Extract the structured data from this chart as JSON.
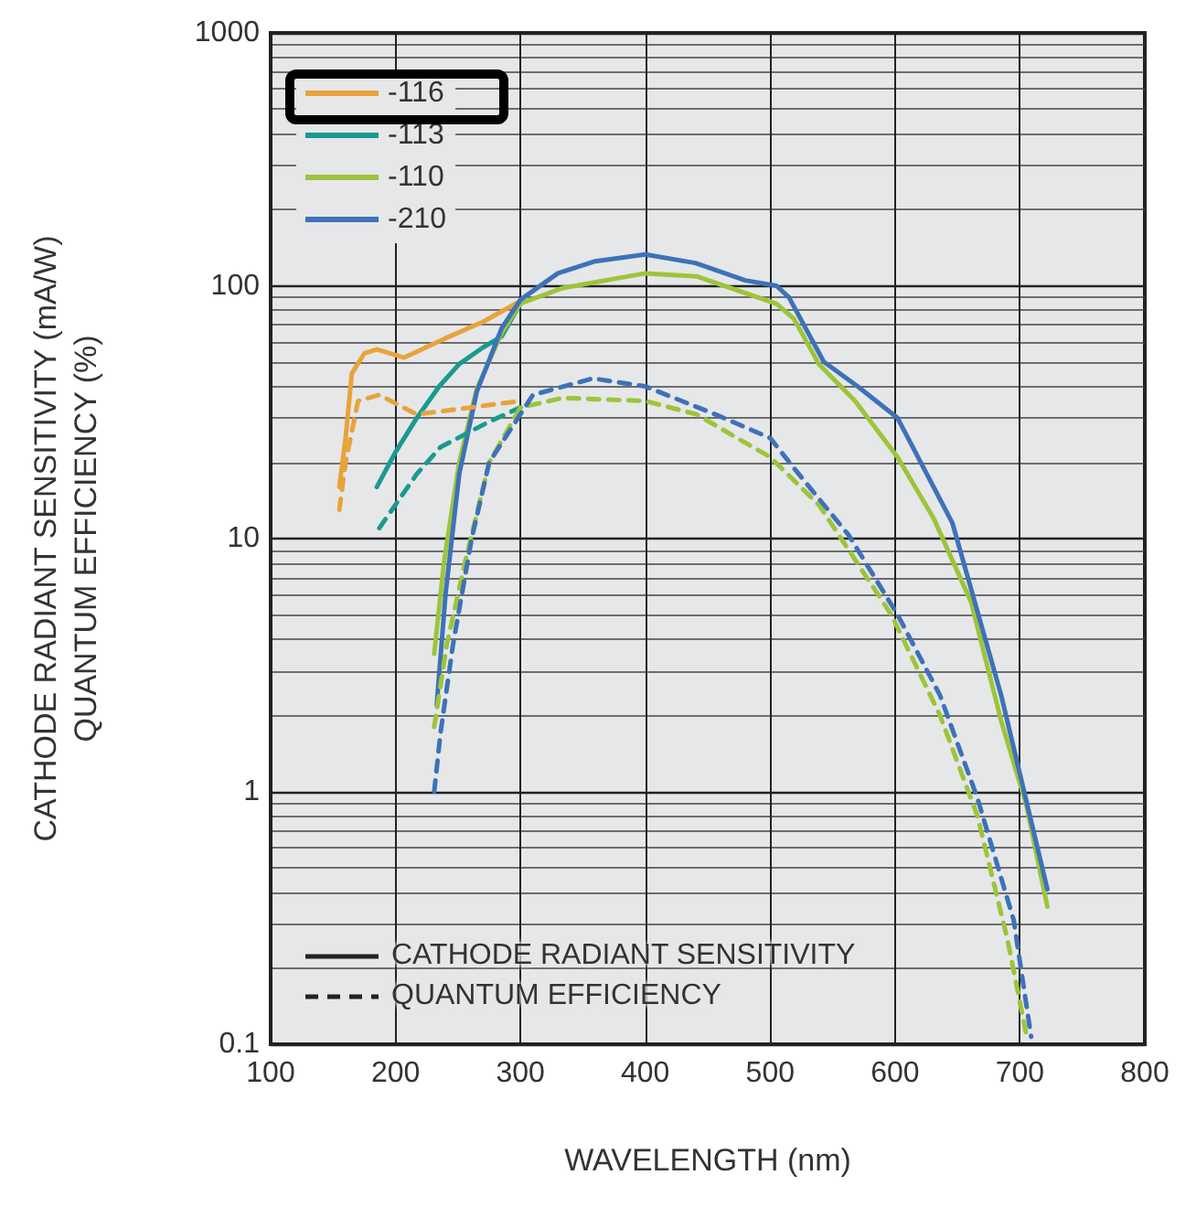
{
  "chart_data": {
    "type": "line",
    "xlabel": "WAVELENGTH (nm)",
    "ylabel": "CATHODE RADIANT SENSITIVITY (mA/W)\nQUANTUM EFFICIENCY (%)",
    "xlim": [
      100,
      800
    ],
    "xticks": [
      100,
      200,
      300,
      400,
      500,
      600,
      700,
      800
    ],
    "ylim": [
      0.1,
      1000
    ],
    "yticks": [
      0.1,
      1,
      10,
      100,
      1000
    ],
    "log": "y",
    "grid": true,
    "legend": "top left",
    "marker": "none",
    "annotations": [
      "CATHODE RADIANT SENSITIVITY",
      "QUANTUM EFFICIENCY"
    ],
    "series": [
      {
        "name": "-116",
        "color": "#e8a33a",
        "line_style": "solid",
        "x": [
          155,
          160,
          165,
          175,
          185,
          207,
          240,
          270,
          300
        ],
        "values": [
          16,
          25,
          45,
          54,
          56,
          52,
          62,
          72,
          87
        ]
      },
      {
        "name": "-113",
        "color": "#1a9a8f",
        "line_style": "solid",
        "x": [
          185,
          200,
          217,
          235,
          251,
          270,
          285,
          300
        ],
        "values": [
          16,
          22,
          30,
          40,
          49,
          57,
          63,
          85
        ]
      },
      {
        "name": "-110",
        "color": "#9dc43a",
        "line_style": "solid",
        "x": [
          231,
          239,
          251,
          265,
          285,
          300,
          334,
          400,
          441,
          505,
          519,
          539,
          568,
          602,
          631,
          661,
          685,
          705,
          722
        ],
        "values": [
          3.5,
          8.2,
          20,
          39,
          65,
          85,
          98,
          112,
          109,
          85,
          74,
          49,
          35,
          21,
          12,
          5.6,
          1.9,
          0.89,
          0.35
        ]
      },
      {
        "name": "-210",
        "color": "#3d72b8",
        "line_style": "solid",
        "x": [
          233,
          240,
          251,
          265,
          285,
          300,
          330,
          360,
          400,
          440,
          480,
          505,
          515,
          543,
          570,
          602,
          646,
          685,
          722
        ],
        "values": [
          2.2,
          6,
          18,
          38,
          68,
          88,
          112,
          125,
          133,
          123,
          105,
          100,
          90,
          50,
          40,
          30,
          11.5,
          2.4,
          0.41
        ]
      },
      {
        "color": "#e8a33a",
        "line_style": "dashed",
        "x": [
          155,
          160,
          170,
          187,
          217,
          260,
          300
        ],
        "values": [
          13,
          20,
          35,
          37,
          31,
          33,
          35
        ]
      },
      {
        "color": "#1a9a8f",
        "line_style": "dashed",
        "x": [
          187,
          217,
          236,
          275,
          300
        ],
        "values": [
          11,
          18,
          23,
          29,
          33
        ]
      },
      {
        "color": "#9dc43a",
        "line_style": "dashed",
        "x": [
          231,
          241,
          256,
          275,
          300,
          334,
          400,
          441,
          500,
          539,
          597,
          636,
          666,
          690,
          705
        ],
        "values": [
          1.8,
          3.8,
          8.2,
          20,
          33,
          36,
          35,
          31,
          21,
          13.6,
          5,
          2,
          0.8,
          0.26,
          0.11
        ]
      },
      {
        "color": "#3d72b8",
        "line_style": "dashed",
        "x": [
          231,
          236,
          246,
          261,
          275,
          310,
          358,
          400,
          456,
          500,
          519,
          563,
          602,
          636,
          666,
          695,
          709
        ],
        "values": [
          1,
          1.7,
          3.8,
          10,
          20,
          37,
          43,
          40,
          31,
          25,
          19,
          10.3,
          5,
          2.4,
          0.94,
          0.31,
          0.107
        ]
      }
    ]
  }
}
